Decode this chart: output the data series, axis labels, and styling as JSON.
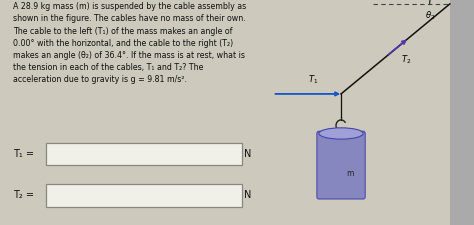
{
  "bg_color": "#cdc9bc",
  "text_color": "#111111",
  "title_text": "A 28.9 kg mass (m) is suspended by the cable assembly as\nshown in the figure. The cables have no mass of their own.\nThe cable to the left (T₁) of the mass makes an angle of\n0.00° with the horizontal, and the cable to the right (T₂)\nmakes an angle (θ₂) of 36.4°. If the mass is at rest, what is\nthe tension in each of the cables, T₁ and T₂? The\nacceleration due to gravity is g = 9.81 m/s².",
  "T1_label": "T₁ =",
  "T2_label": "T₂ =",
  "N_label": "N",
  "fig_width": 4.74,
  "fig_height": 2.26,
  "dpi": 100,
  "wall_color": "#aaaaaa",
  "cable_color": "#111111",
  "T1_arrow_color": "#1155cc",
  "T2_arrow_color": "#5533aa",
  "mass_body_color": "#8080c0",
  "mass_top_color": "#a0a0d8",
  "theta2_deg": 36.4,
  "hook_color": "#222222",
  "dashed_color": "#444444",
  "box_facecolor": "#f0f0e8",
  "box_edgecolor": "#888880",
  "diagram_bg": "#cdc9bc"
}
